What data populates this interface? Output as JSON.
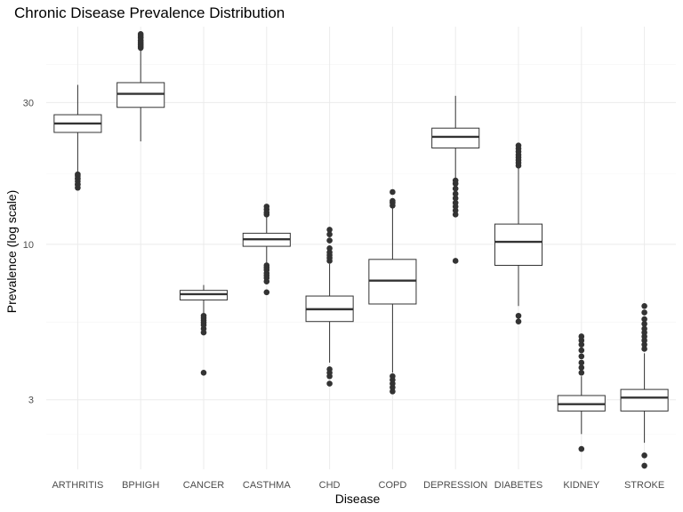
{
  "chart_data": {
    "type": "boxplot",
    "title": "Chronic Disease Prevalence Distribution",
    "xlabel": "Disease",
    "ylabel": "Prevalence (log scale)",
    "y_scale": "log",
    "ylim": [
      1.75,
      54
    ],
    "y_ticks": [
      3,
      10,
      30
    ],
    "grid": true,
    "categories": [
      "ARTHRITIS",
      "BPHIGH",
      "CANCER",
      "CASTHMA",
      "CHD",
      "COPD",
      "DEPRESSION",
      "DIABETES",
      "KIDNEY",
      "STROKE"
    ],
    "boxes": [
      {
        "category": "ARTHRITIS",
        "whisker_low": 17.4,
        "q1": 23.8,
        "median": 25.5,
        "q3": 27.3,
        "whisker_high": 34.4,
        "outliers": [
          15.5,
          15.9,
          16.3,
          16.7,
          17.0,
          17.2,
          15.9,
          16.6
        ]
      },
      {
        "category": "BPHIGH",
        "whisker_low": 22.2,
        "q1": 28.9,
        "median": 32.1,
        "q3": 35.0,
        "whisker_high": 49.0,
        "outliers": [
          45.8,
          46.3,
          46.8,
          47.3,
          47.9,
          48.5,
          49.5,
          50.3,
          51.0
        ]
      },
      {
        "category": "CANCER",
        "whisker_low": 5.8,
        "q1": 6.5,
        "median": 6.8,
        "q3": 7.0,
        "whisker_high": 7.3,
        "outliers": [
          3.7,
          5.05,
          5.2,
          5.35,
          5.45,
          5.55,
          5.65,
          5.75
        ]
      },
      {
        "category": "CASTHMA",
        "whisker_low": 8.6,
        "q1": 9.85,
        "median": 10.4,
        "q3": 10.9,
        "whisker_high": 12.4,
        "outliers": [
          6.9,
          7.5,
          7.7,
          7.85,
          8.0,
          8.2,
          8.35,
          8.5,
          12.6,
          12.8,
          13.1,
          13.4
        ]
      },
      {
        "category": "CHD",
        "whisker_low": 4.0,
        "q1": 5.5,
        "median": 6.05,
        "q3": 6.7,
        "whisker_high": 8.6,
        "outliers": [
          3.4,
          3.6,
          3.7,
          3.8,
          8.8,
          9.0,
          9.2,
          9.4,
          9.7,
          10.3,
          10.8,
          11.2
        ]
      },
      {
        "category": "COPD",
        "whisker_low": 3.7,
        "q1": 6.3,
        "median": 7.55,
        "q3": 8.9,
        "whisker_high": 13.3,
        "outliers": [
          3.2,
          3.3,
          3.4,
          3.5,
          3.6,
          13.5,
          13.8,
          14.0,
          15.0
        ]
      },
      {
        "category": "DEPRESSION",
        "whisker_low": 16.7,
        "q1": 21.1,
        "median": 23.0,
        "q3": 24.6,
        "whisker_high": 31.6,
        "outliers": [
          8.8,
          12.6,
          13.0,
          13.4,
          13.8,
          14.3,
          14.8,
          15.4,
          16.0,
          16.4
        ]
      },
      {
        "category": "DIABETES",
        "whisker_low": 6.2,
        "q1": 8.5,
        "median": 10.2,
        "q3": 11.7,
        "whisker_high": 18.0,
        "outliers": [
          5.5,
          5.75,
          18.4,
          18.8,
          19.2,
          19.6,
          20.0,
          20.5,
          21.0,
          21.5
        ]
      },
      {
        "category": "KIDNEY",
        "whisker_low": 2.3,
        "q1": 2.75,
        "median": 2.9,
        "q3": 3.1,
        "whisker_high": 3.6,
        "outliers": [
          2.05,
          3.7,
          3.85,
          4.0,
          4.2,
          4.4,
          4.6,
          4.75,
          4.9
        ]
      },
      {
        "category": "STROKE",
        "whisker_low": 2.15,
        "q1": 2.75,
        "median": 3.05,
        "q3": 3.25,
        "whisker_high": 4.3,
        "outliers": [
          1.8,
          1.95,
          4.45,
          4.6,
          4.75,
          4.9,
          5.05,
          5.2,
          5.4,
          5.6,
          5.9,
          6.2
        ]
      }
    ],
    "colors": {
      "box_fill": "#ffffff",
      "line": "#333333",
      "grid_major": "#ebebeb",
      "grid_minor": "#f4f4f4",
      "text": "#000000",
      "tick_text": "#4d4d4d"
    }
  }
}
